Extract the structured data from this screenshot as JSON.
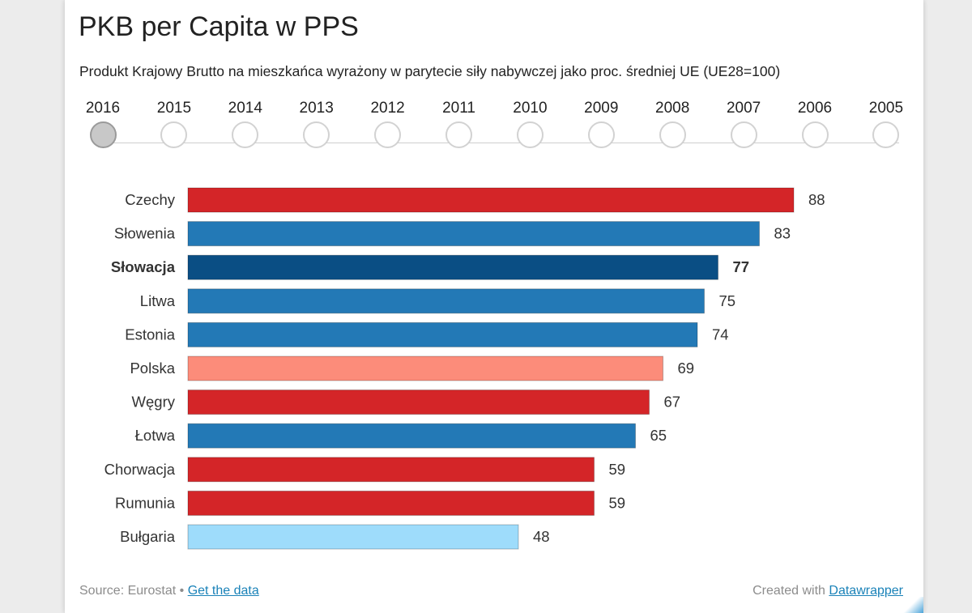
{
  "chart_data": {
    "type": "bar",
    "orientation": "horizontal",
    "title": "PKB per Capita w PPS",
    "subtitle": "Produkt Krajowy Brutto na mieszkańca wyrażony w parytecie siły nabywczej jako proc. średniej UE (UE28=100)",
    "categories": [
      "Czechy",
      "Słowenia",
      "Słowacja",
      "Litwa",
      "Estonia",
      "Polska",
      "Węgry",
      "Łotwa",
      "Chorwacja",
      "Rumunia",
      "Bułgaria"
    ],
    "values": [
      88,
      83,
      77,
      75,
      74,
      69,
      67,
      65,
      59,
      59,
      48
    ],
    "colors": [
      "#d42528",
      "#2379b6",
      "#0a4e84",
      "#2379b6",
      "#2379b6",
      "#fc8c7a",
      "#d42528",
      "#2379b6",
      "#d42528",
      "#d42528",
      "#9edcfb"
    ],
    "highlighted": "Słowacja",
    "xlim": [
      0,
      88
    ],
    "grid": false,
    "legend": "none"
  },
  "years": {
    "items": [
      "2016",
      "2015",
      "2014",
      "2013",
      "2012",
      "2011",
      "2010",
      "2009",
      "2008",
      "2007",
      "2006",
      "2005"
    ],
    "selected": "2016"
  },
  "footer": {
    "source_label": "Source: Eurostat",
    "separator": "•",
    "data_link": "Get the data",
    "created_label": "Created with",
    "created_link": "Datawrapper"
  }
}
